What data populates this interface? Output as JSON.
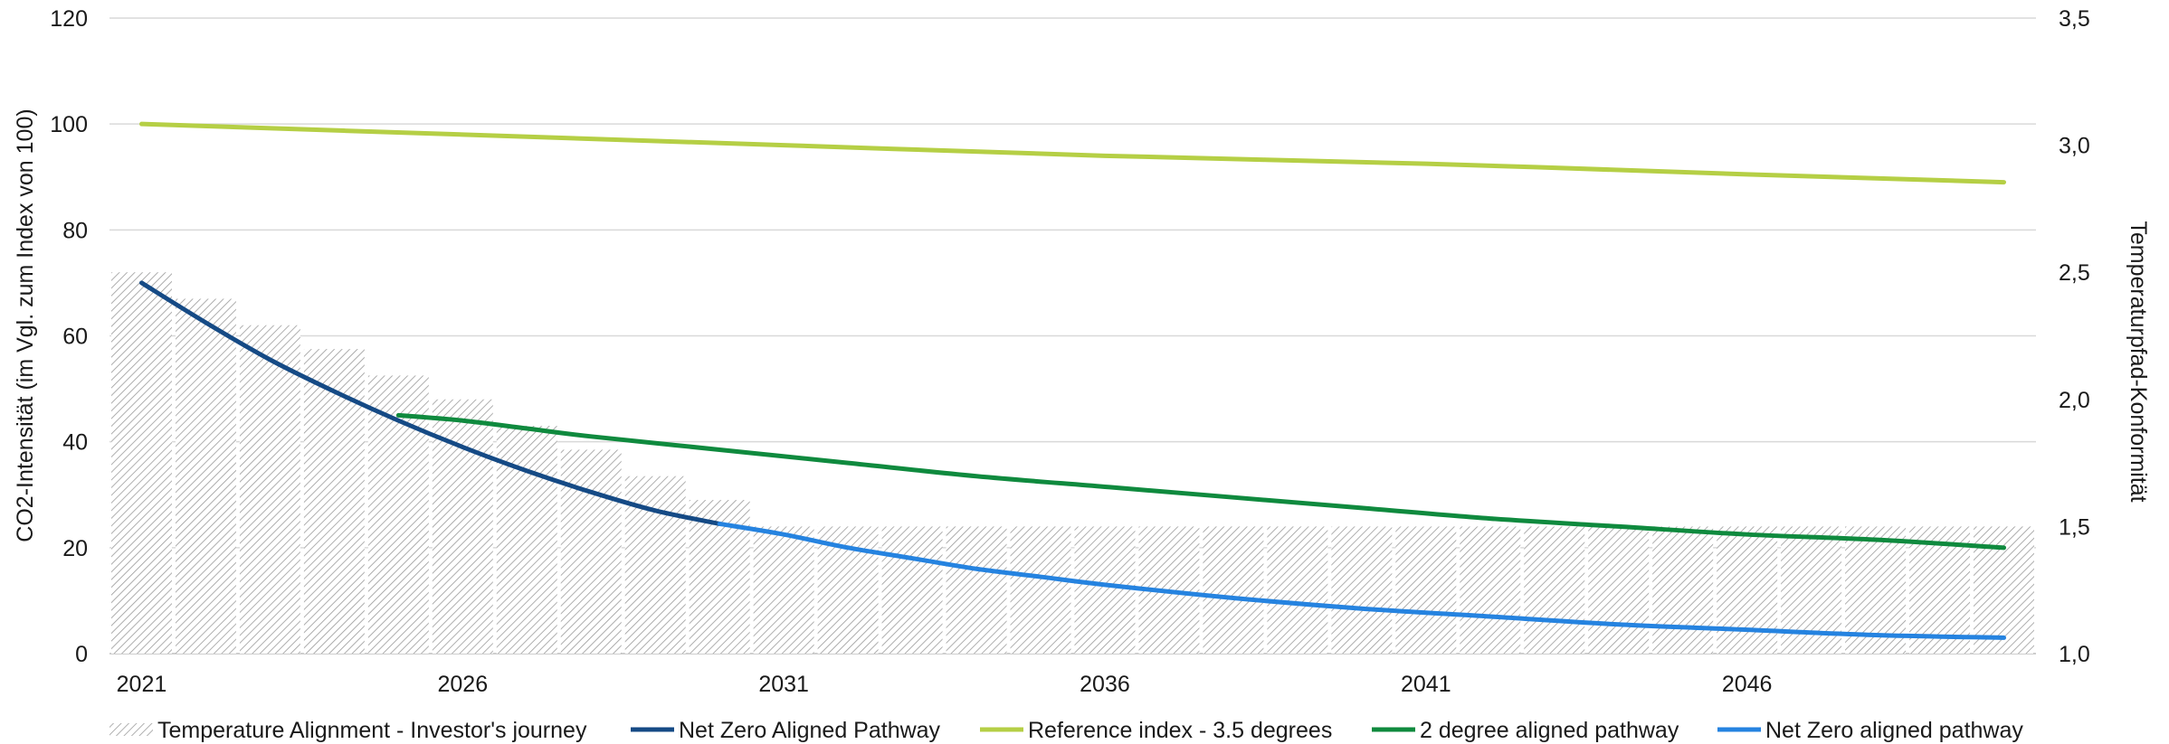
{
  "chart_data": {
    "type": "bar",
    "title": "",
    "ylabel_left": "CO2-Intensität (im Vgl. zum Index von 100)",
    "ylabel_right": "Temperaturpfad-Konformität",
    "y_left": {
      "min": 0,
      "max": 120,
      "ticks": [
        "0",
        "20",
        "40",
        "60",
        "80",
        "100",
        "120"
      ]
    },
    "y_right": {
      "min": 1.0,
      "max": 3.5,
      "ticks": [
        "1,0",
        "1,5",
        "2,0",
        "2,5",
        "3,0",
        "3,5"
      ]
    },
    "x_tick_labels": [
      "2021",
      "2026",
      "2031",
      "2036",
      "2041",
      "2046"
    ],
    "grid": true,
    "legend_position": "bottom",
    "years": [
      2021,
      2022,
      2023,
      2024,
      2025,
      2026,
      2027,
      2028,
      2029,
      2030,
      2031,
      2032,
      2033,
      2034,
      2035,
      2036,
      2037,
      2038,
      2039,
      2040,
      2041,
      2042,
      2043,
      2044,
      2045,
      2046,
      2047,
      2048,
      2049,
      2050
    ],
    "series": [
      {
        "name": "Temperature Alignment - Investor's journey",
        "type": "bar",
        "axis": "left",
        "color": "#9e9e9e",
        "values": [
          72,
          67,
          62,
          57.5,
          52.5,
          48,
          43,
          38.5,
          33.5,
          29,
          24,
          24,
          24,
          24,
          24,
          24,
          24,
          24,
          24,
          24,
          24,
          24,
          24,
          24,
          24,
          24,
          24,
          24,
          24,
          24
        ]
      },
      {
        "name": "Net Zero Aligned Pathway",
        "type": "line",
        "axis": "left",
        "color": "#154a85",
        "x": [
          2021,
          2022,
          2023,
          2024,
          2025,
          2026,
          2027,
          2028,
          2029,
          2030
        ],
        "values": [
          70,
          62.5,
          55.5,
          49.5,
          44,
          39,
          34.5,
          30.5,
          27,
          24.5
        ]
      },
      {
        "name": "Reference index - 3.5 degrees",
        "type": "line",
        "axis": "left",
        "color": "#b5cf45",
        "x": [
          2021,
          2026,
          2031,
          2036,
          2041,
          2046,
          2050
        ],
        "values": [
          100,
          98,
          96,
          94,
          92.5,
          90.5,
          89
        ]
      },
      {
        "name": "2 degree aligned pathway",
        "type": "line",
        "axis": "left",
        "color": "#0f8a3e",
        "x": [
          2025,
          2026,
          2027,
          2028,
          2030,
          2032,
          2034,
          2036,
          2038,
          2040,
          2042,
          2044,
          2046,
          2048,
          2050
        ],
        "values": [
          45,
          44,
          42.5,
          41,
          38.5,
          36,
          33.5,
          31.5,
          29.5,
          27.5,
          25.5,
          24,
          22.5,
          21.5,
          20
        ]
      },
      {
        "name": "Net Zero aligned pathway",
        "type": "line",
        "axis": "left",
        "color": "#2583e0",
        "x": [
          2030,
          2031,
          2032,
          2033,
          2034,
          2035,
          2036,
          2038,
          2040,
          2042,
          2044,
          2046,
          2048,
          2050
        ],
        "values": [
          24.5,
          22.5,
          20,
          18,
          16,
          14.5,
          13,
          10.5,
          8.5,
          7,
          5.5,
          4.5,
          3.5,
          3
        ]
      }
    ]
  }
}
